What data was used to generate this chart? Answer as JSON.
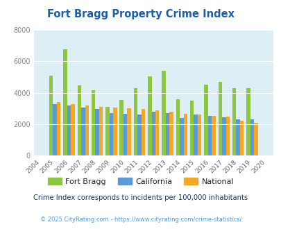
{
  "title": "Fort Bragg Property Crime Index",
  "years": [
    2004,
    2005,
    2006,
    2007,
    2008,
    2009,
    2010,
    2011,
    2012,
    2013,
    2014,
    2015,
    2016,
    2017,
    2018,
    2019,
    2020
  ],
  "fort_bragg": [
    null,
    5100,
    6750,
    4450,
    4150,
    3100,
    3550,
    4300,
    5050,
    5400,
    3600,
    3500,
    4500,
    4700,
    4300,
    4300,
    null
  ],
  "california": [
    null,
    3280,
    3200,
    3050,
    2950,
    2700,
    2650,
    2600,
    2800,
    2700,
    2400,
    2600,
    2550,
    2450,
    2300,
    2300,
    null
  ],
  "national": [
    null,
    3400,
    3300,
    3200,
    3100,
    3050,
    3000,
    2950,
    2900,
    2800,
    2650,
    2600,
    2550,
    2500,
    2200,
    2100,
    null
  ],
  "fort_bragg_color": "#8dc63f",
  "california_color": "#5b9bd5",
  "national_color": "#f5a623",
  "bg_color": "#ddeef5",
  "ylim": [
    0,
    8000
  ],
  "yticks": [
    0,
    2000,
    4000,
    6000,
    8000
  ],
  "title_color": "#1f5faa",
  "subtitle": "Crime Index corresponds to incidents per 100,000 inhabitants",
  "footer": "© 2025 CityRating.com - https://www.cityrating.com/crime-statistics/",
  "subtitle_color": "#1a3a5c",
  "footer_color": "#5b9bd5",
  "legend_labels": [
    "Fort Bragg",
    "California",
    "National"
  ]
}
